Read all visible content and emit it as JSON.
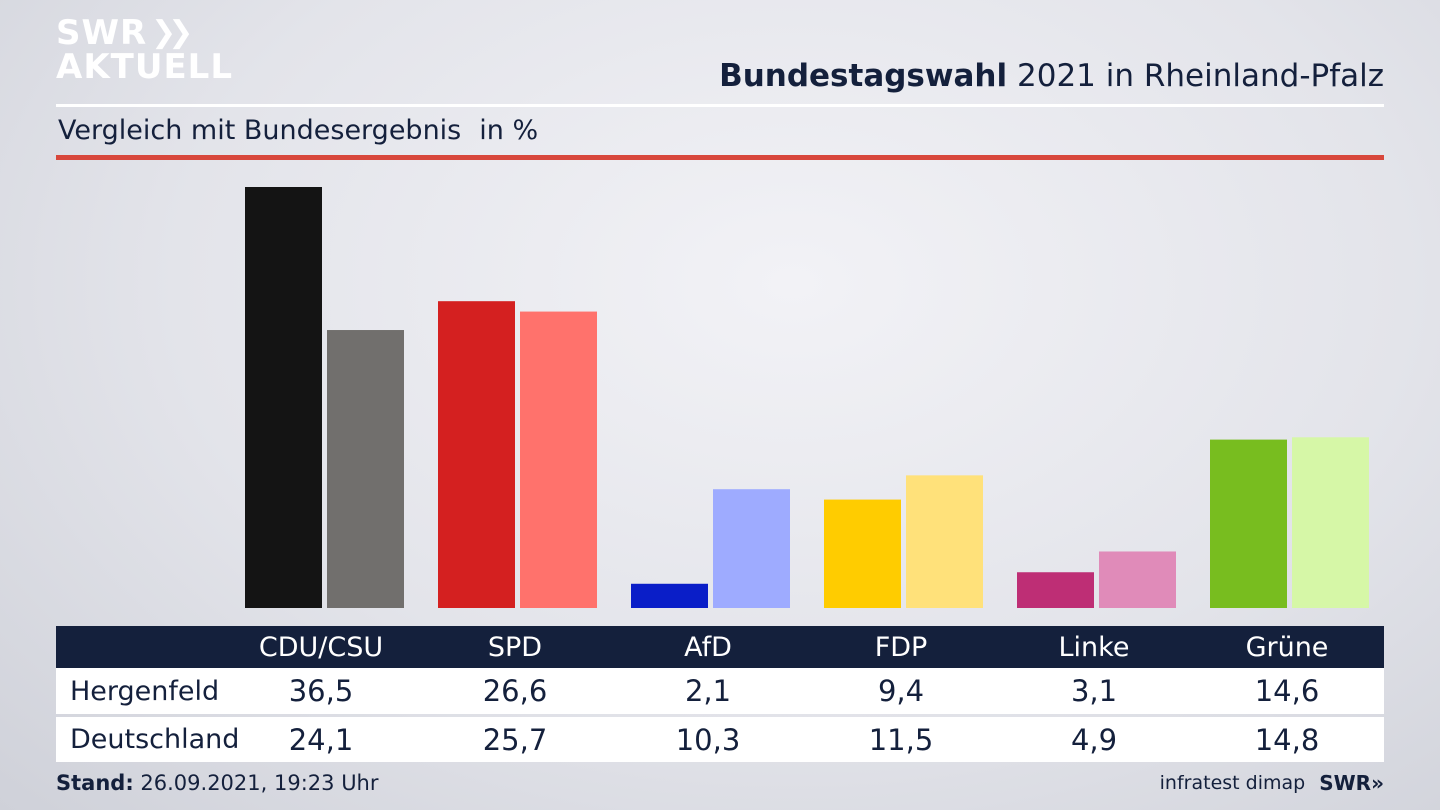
{
  "branding": {
    "line1": "SWR",
    "line2": "AKTUELL",
    "footer_logo": "SWR»"
  },
  "header": {
    "title_bold": "Bundestagswahl",
    "title_rest": "2021 in Rheinland-Pfalz"
  },
  "subheader": {
    "text": "Vergleich mit Bundesergebnis",
    "unit": "in %"
  },
  "chart_data": {
    "type": "bar",
    "categories": [
      "CDU/CSU",
      "SPD",
      "AfD",
      "FDP",
      "Linke",
      "Grüne"
    ],
    "series": [
      {
        "name": "Hergenfeld",
        "values": [
          36.5,
          26.6,
          2.1,
          9.4,
          3.1,
          14.6
        ]
      },
      {
        "name": "Deutschland",
        "values": [
          24.1,
          25.7,
          10.3,
          11.5,
          4.9,
          14.8
        ]
      }
    ],
    "colors": {
      "Hergenfeld": [
        "#141414",
        "#d42020",
        "#0a1ec8",
        "#ffcc00",
        "#be2e75",
        "#78bd1f"
      ],
      "Deutschland": [
        "#716f6d",
        "#ff726c",
        "#9eabff",
        "#ffe17a",
        "#e08bb9",
        "#d6f7a7"
      ]
    },
    "ylim": [
      0,
      36.5
    ],
    "grid": false
  },
  "table": {
    "headers": [
      "CDU/CSU",
      "SPD",
      "AfD",
      "FDP",
      "Linke",
      "Grüne"
    ],
    "rows": [
      {
        "label": "Hergenfeld",
        "values": [
          "36,5",
          "26,6",
          "2,1",
          "9,4",
          "3,1",
          "14,6"
        ]
      },
      {
        "label": "Deutschland",
        "values": [
          "24,1",
          "25,7",
          "10,3",
          "11,5",
          "4,9",
          "14,8"
        ]
      }
    ]
  },
  "footer": {
    "stand_label": "Stand:",
    "stand_value": "26.09.2021, 19:23 Uhr",
    "source": "infratest dimap"
  }
}
